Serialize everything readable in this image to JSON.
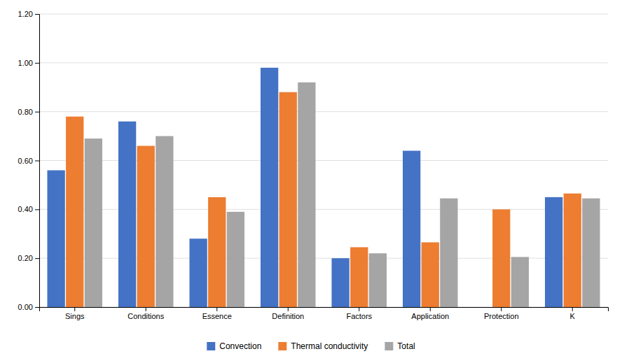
{
  "chart_data": {
    "type": "bar",
    "categories": [
      "Sings",
      "Conditions",
      "Essence",
      "Definition",
      "Factors",
      "Application",
      "Protection",
      "K"
    ],
    "series": [
      {
        "name": "Convection",
        "color": "#4472C4",
        "values": [
          0.56,
          0.76,
          0.28,
          0.98,
          0.2,
          0.64,
          0.0,
          0.45
        ]
      },
      {
        "name": "Thermal conductivity",
        "color": "#ED7D31",
        "values": [
          0.78,
          0.66,
          0.45,
          0.88,
          0.245,
          0.265,
          0.4,
          0.465
        ]
      },
      {
        "name": "Total",
        "color": "#A5A5A5",
        "values": [
          0.69,
          0.7,
          0.39,
          0.92,
          0.22,
          0.445,
          0.205,
          0.445
        ]
      }
    ],
    "ylim": [
      0.0,
      1.2
    ],
    "yticks": [
      {
        "value": 0.0,
        "label": "0.00"
      },
      {
        "value": 0.2,
        "label": "0.20"
      },
      {
        "value": 0.4,
        "label": "0.40"
      },
      {
        "value": 0.6,
        "label": "0.60"
      },
      {
        "value": 0.8,
        "label": "0.80"
      },
      {
        "value": 1.0,
        "label": "1.00"
      },
      {
        "value": 1.2,
        "label": "1.20"
      }
    ],
    "grid": true,
    "legend": "bottom"
  }
}
